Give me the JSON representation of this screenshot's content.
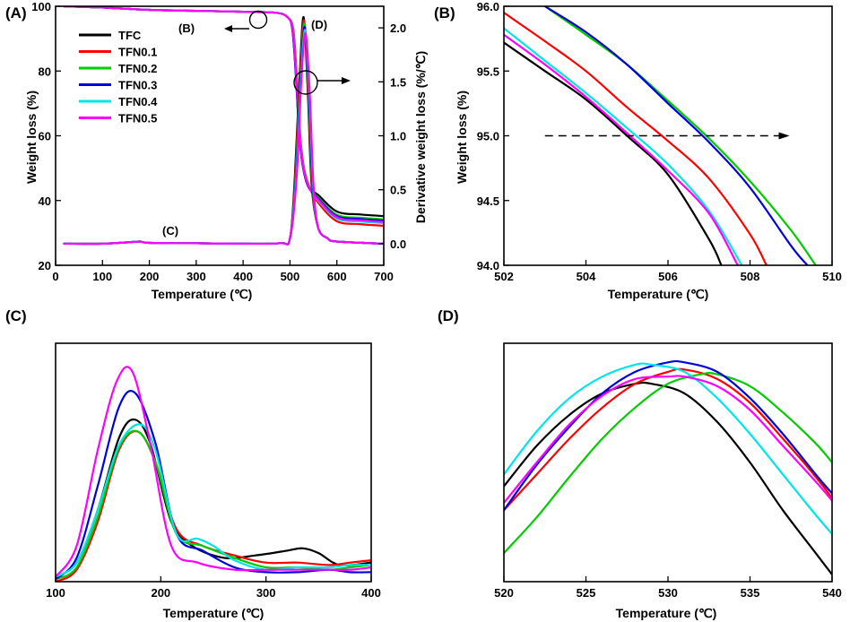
{
  "series_styles": [
    {
      "name": "TFC",
      "color": "#000000"
    },
    {
      "name": "TFN0.1",
      "color": "#ff0000"
    },
    {
      "name": "TFN0.2",
      "color": "#00cc00"
    },
    {
      "name": "TFN0.3",
      "color": "#0000dd"
    },
    {
      "name": "TFN0.4",
      "color": "#00e5e5"
    },
    {
      "name": "TFN0.5",
      "color": "#ff00ff"
    }
  ],
  "chart_data": [
    {
      "panel": "(A)",
      "type": "line",
      "xlabel": "Temperature (℃)",
      "ylabel": "Weight loss (%)",
      "ylabel_right": "Derivative weight loss (%/℃)",
      "xlim": [
        0,
        700
      ],
      "ylim": [
        20,
        100
      ],
      "ylim_right": [
        -0.2,
        2.2
      ],
      "xticks": [
        0,
        100,
        200,
        300,
        400,
        500,
        600,
        700
      ],
      "yticks": [
        20,
        40,
        60,
        80,
        100
      ],
      "yticks_right": [
        "0.0",
        "0.5",
        "1.0",
        "1.5",
        "2.0"
      ],
      "annotations": [
        "(B)",
        "(C)",
        "(D)"
      ],
      "legend_position": "top-left",
      "weight_end_values": {
        "TFC": 35.2,
        "TFN0.1": 32.2,
        "TFN0.2": 34.2,
        "TFN0.3": 33.8,
        "TFN0.4": 33.0,
        "TFN0.5": 33.4
      },
      "derivative_peak": {
        "x": 531,
        "y": 2.1
      }
    },
    {
      "panel": "(B)",
      "type": "line",
      "xlabel": "Temperature (℃)",
      "ylabel": "Weight loss (%)",
      "xlim": [
        502,
        510
      ],
      "ylim": [
        94.0,
        96.0
      ],
      "xticks": [
        502,
        504,
        506,
        508,
        510
      ],
      "yticks": [
        "94.0",
        "94.5",
        "95.0",
        "95.5",
        "96.0"
      ],
      "reference_line_y": 95.0,
      "series": [
        {
          "name": "TFC",
          "x": [
            502,
            503,
            504,
            505,
            506,
            507,
            507.3
          ],
          "y": [
            95.72,
            95.5,
            95.28,
            95.0,
            94.7,
            94.2,
            94.0
          ]
        },
        {
          "name": "TFN0.1",
          "x": [
            502,
            503,
            504,
            505,
            506,
            507,
            508,
            508.4
          ],
          "y": [
            95.95,
            95.73,
            95.5,
            95.22,
            94.96,
            94.67,
            94.24,
            94.0
          ]
        },
        {
          "name": "TFN0.2",
          "x": [
            503,
            504,
            505,
            506,
            507,
            508,
            509,
            509.6
          ],
          "y": [
            96.0,
            95.78,
            95.55,
            95.27,
            94.98,
            94.65,
            94.27,
            94.0
          ]
        },
        {
          "name": "TFN0.3",
          "x": [
            503,
            504,
            505,
            506,
            507,
            508,
            509,
            509.4
          ],
          "y": [
            96.0,
            95.8,
            95.55,
            95.25,
            94.95,
            94.6,
            94.15,
            94.0
          ]
        },
        {
          "name": "TFN0.4",
          "x": [
            502,
            503,
            504,
            505,
            506,
            507,
            507.8
          ],
          "y": [
            95.83,
            95.58,
            95.33,
            95.06,
            94.78,
            94.42,
            94.0
          ]
        },
        {
          "name": "TFN0.5",
          "x": [
            502,
            503,
            504,
            505,
            506,
            507,
            507.7
          ],
          "y": [
            95.78,
            95.55,
            95.3,
            95.02,
            94.73,
            94.4,
            94.0
          ]
        }
      ]
    },
    {
      "panel": "(C)",
      "type": "line",
      "xlabel": "Temperature (℃)",
      "ylabel": "",
      "xlim": [
        100,
        400
      ],
      "ylim": [
        0,
        1
      ],
      "xticks": [
        100,
        200,
        300,
        400
      ],
      "series": [
        {
          "name": "TFC",
          "x": [
            100,
            120,
            140,
            160,
            175,
            190,
            210,
            230,
            260,
            290,
            320,
            335,
            350,
            370,
            400
          ],
          "y": [
            0.02,
            0.08,
            0.3,
            0.6,
            0.68,
            0.58,
            0.25,
            0.15,
            0.1,
            0.11,
            0.13,
            0.14,
            0.12,
            0.07,
            0.08
          ]
        },
        {
          "name": "TFN0.1",
          "x": [
            100,
            120,
            140,
            160,
            178,
            195,
            215,
            240,
            270,
            300,
            330,
            360,
            380,
            400
          ],
          "y": [
            0.0,
            0.05,
            0.25,
            0.55,
            0.63,
            0.5,
            0.22,
            0.15,
            0.11,
            0.08,
            0.08,
            0.07,
            0.08,
            0.09
          ]
        },
        {
          "name": "TFN0.2",
          "x": [
            100,
            120,
            140,
            160,
            178,
            195,
            215,
            240,
            270,
            300,
            330,
            360,
            380,
            400
          ],
          "y": [
            0.01,
            0.06,
            0.27,
            0.56,
            0.63,
            0.5,
            0.2,
            0.15,
            0.1,
            0.06,
            0.06,
            0.05,
            0.06,
            0.07
          ]
        },
        {
          "name": "TFN0.3",
          "x": [
            100,
            120,
            140,
            160,
            176,
            195,
            215,
            240,
            270,
            300,
            330,
            360,
            380,
            400
          ],
          "y": [
            0.01,
            0.1,
            0.4,
            0.73,
            0.79,
            0.58,
            0.2,
            0.13,
            0.06,
            0.04,
            0.04,
            0.05,
            0.04,
            0.04
          ]
        },
        {
          "name": "TFN0.4",
          "x": [
            100,
            120,
            140,
            160,
            180,
            195,
            215,
            235,
            250,
            270,
            300,
            330,
            360,
            380,
            400
          ],
          "y": [
            0.02,
            0.08,
            0.3,
            0.57,
            0.66,
            0.55,
            0.2,
            0.18,
            0.15,
            0.09,
            0.05,
            0.06,
            0.06,
            0.07,
            0.07
          ]
        },
        {
          "name": "TFN0.5",
          "x": [
            100,
            120,
            140,
            158,
            173,
            190,
            210,
            235,
            270,
            300,
            330,
            360,
            380,
            400
          ],
          "y": [
            0.02,
            0.15,
            0.55,
            0.84,
            0.88,
            0.58,
            0.15,
            0.08,
            0.05,
            0.05,
            0.05,
            0.05,
            0.05,
            0.06
          ]
        }
      ]
    },
    {
      "panel": "(D)",
      "type": "line",
      "xlabel": "Temperature (℃)",
      "ylabel": "",
      "xlim": [
        520,
        540
      ],
      "ylim": [
        0,
        1
      ],
      "xticks": [
        520,
        525,
        530,
        535,
        540
      ],
      "series": [
        {
          "name": "TFC",
          "x": [
            520,
            522,
            524,
            526,
            528,
            529,
            531,
            533,
            535,
            537,
            539,
            540
          ],
          "y": [
            0.4,
            0.57,
            0.7,
            0.79,
            0.83,
            0.83,
            0.79,
            0.67,
            0.5,
            0.3,
            0.12,
            0.03
          ]
        },
        {
          "name": "TFN0.1",
          "x": [
            520,
            522,
            524,
            526,
            528,
            530,
            531,
            533,
            535,
            537,
            539,
            540
          ],
          "y": [
            0.3,
            0.45,
            0.6,
            0.73,
            0.83,
            0.88,
            0.89,
            0.85,
            0.75,
            0.6,
            0.44,
            0.35
          ]
        },
        {
          "name": "TFN0.2",
          "x": [
            520,
            522,
            524,
            526,
            528,
            530,
            532,
            533,
            535,
            537,
            539,
            540
          ],
          "y": [
            0.12,
            0.27,
            0.44,
            0.6,
            0.73,
            0.83,
            0.87,
            0.87,
            0.82,
            0.71,
            0.58,
            0.5
          ]
        },
        {
          "name": "TFN0.3",
          "x": [
            520,
            522,
            524,
            526,
            528,
            530,
            531,
            533,
            535,
            537,
            539,
            540
          ],
          "y": [
            0.3,
            0.49,
            0.65,
            0.79,
            0.88,
            0.92,
            0.92,
            0.88,
            0.77,
            0.62,
            0.45,
            0.37
          ]
        },
        {
          "name": "TFN0.4",
          "x": [
            520,
            522,
            524,
            526,
            528,
            529,
            531,
            533,
            535,
            537,
            539,
            540
          ],
          "y": [
            0.45,
            0.63,
            0.77,
            0.86,
            0.91,
            0.91,
            0.88,
            0.77,
            0.62,
            0.45,
            0.28,
            0.2
          ]
        },
        {
          "name": "TFN0.5",
          "x": [
            520,
            522,
            524,
            526,
            528,
            530,
            531,
            533,
            535,
            537,
            539,
            540
          ],
          "y": [
            0.33,
            0.5,
            0.66,
            0.78,
            0.85,
            0.86,
            0.86,
            0.82,
            0.72,
            0.57,
            0.42,
            0.34
          ]
        }
      ]
    }
  ]
}
